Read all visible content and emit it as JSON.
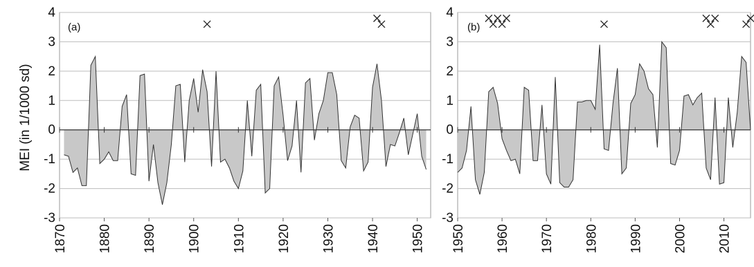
{
  "figure": {
    "ylabel": "MEI (in 1/1000 sd)"
  },
  "chart_data": [
    {
      "type": "area",
      "panel_label": "(a)",
      "ylabel": "MEI (in 1/1000 sd)",
      "xlabel": "",
      "xlim": [
        1870,
        1953
      ],
      "ylim": [
        -3,
        4
      ],
      "x_ticks": [
        1870,
        1880,
        1890,
        1900,
        1910,
        1920,
        1930,
        1940,
        1950
      ],
      "y_ticks": [
        -3,
        -2,
        -1,
        0,
        1,
        2,
        3,
        4
      ],
      "grid": true,
      "fill_color": "#c8c8c8",
      "line_color": "#333333",
      "series": [
        {
          "x": [
            1871,
            1872,
            1873,
            1874,
            1875,
            1876,
            1877,
            1878,
            1879,
            1880,
            1881,
            1882,
            1883,
            1884,
            1885,
            1886,
            1887,
            1888,
            1889,
            1890,
            1891,
            1892,
            1893,
            1894,
            1895,
            1896,
            1897,
            1898,
            1899,
            1900,
            1901,
            1902,
            1903,
            1904,
            1905,
            1906,
            1907,
            1908,
            1909,
            1910,
            1911,
            1912,
            1913,
            1914,
            1915,
            1916,
            1917,
            1918,
            1919,
            1920,
            1921,
            1922,
            1923,
            1924,
            1925,
            1926,
            1927,
            1928,
            1929,
            1930,
            1931,
            1932,
            1933,
            1934,
            1935,
            1936,
            1937,
            1938,
            1939,
            1940,
            1941,
            1942,
            1943,
            1944,
            1945,
            1946,
            1947,
            1948,
            1949,
            1950,
            1951,
            1952
          ],
          "values": [
            -0.85,
            -0.9,
            -1.45,
            -1.3,
            -1.9,
            -1.9,
            2.2,
            2.5,
            -1.15,
            -1.0,
            -0.75,
            -1.05,
            -1.05,
            0.8,
            1.2,
            -1.5,
            -1.55,
            1.85,
            1.9,
            -1.75,
            -0.5,
            -1.8,
            -2.55,
            -1.8,
            -0.5,
            1.5,
            1.55,
            -1.1,
            1.0,
            1.75,
            0.6,
            2.05,
            1.3,
            -1.25,
            2.0,
            -1.1,
            -1.0,
            -1.3,
            -1.75,
            -2.0,
            -1.4,
            1.0,
            -0.9,
            1.35,
            1.55,
            -2.15,
            -2.0,
            1.5,
            1.8,
            0.5,
            -1.05,
            -0.55,
            1.0,
            -1.45,
            1.6,
            1.75,
            -0.35,
            0.55,
            1.0,
            1.95,
            1.95,
            1.2,
            -1.05,
            -1.3,
            0.1,
            0.5,
            0.4,
            -1.4,
            -1.1,
            1.45,
            2.25,
            1.0,
            -1.25,
            -0.5,
            -0.55,
            -0.1,
            0.4,
            -0.85,
            -0.15,
            0.55,
            -0.9,
            -1.35
          ]
        }
      ],
      "markers": [
        {
          "x": 1903,
          "y": 3.6
        },
        {
          "x": 1941,
          "y": 3.8
        },
        {
          "x": 1942,
          "y": 3.6
        }
      ]
    },
    {
      "type": "area",
      "panel_label": "(b)",
      "ylabel": "",
      "xlabel": "",
      "xlim": [
        1950,
        2016
      ],
      "ylim": [
        -3,
        4
      ],
      "x_ticks": [
        1950,
        1960,
        1970,
        1980,
        1990,
        2000,
        2010
      ],
      "y_ticks": [
        -3,
        -2,
        -1,
        0,
        1,
        2,
        3,
        4
      ],
      "grid": true,
      "fill_color": "#c8c8c8",
      "line_color": "#333333",
      "series": [
        {
          "x": [
            1950,
            1951,
            1952,
            1953,
            1954,
            1955,
            1956,
            1957,
            1958,
            1959,
            1960,
            1961,
            1962,
            1963,
            1964,
            1965,
            1966,
            1967,
            1968,
            1969,
            1970,
            1971,
            1972,
            1973,
            1974,
            1975,
            1976,
            1977,
            1978,
            1979,
            1980,
            1981,
            1982,
            1983,
            1984,
            1985,
            1986,
            1987,
            1988,
            1989,
            1990,
            1991,
            1992,
            1993,
            1994,
            1995,
            1996,
            1997,
            1998,
            1999,
            2000,
            2001,
            2002,
            2003,
            2004,
            2005,
            2006,
            2007,
            2008,
            2009,
            2010,
            2011,
            2012,
            2013,
            2014,
            2015,
            2016
          ],
          "values": [
            -1.45,
            -1.3,
            -0.7,
            0.8,
            -1.7,
            -2.2,
            -1.45,
            1.3,
            1.45,
            0.9,
            -0.3,
            -0.7,
            -1.05,
            -1.0,
            -1.5,
            1.45,
            1.35,
            -1.05,
            -1.05,
            0.85,
            -1.5,
            -1.85,
            1.8,
            -1.8,
            -1.95,
            -1.95,
            -1.7,
            0.95,
            0.95,
            1.0,
            1.0,
            0.7,
            2.9,
            -0.65,
            -0.7,
            0.9,
            2.1,
            -1.5,
            -1.3,
            0.9,
            1.2,
            2.25,
            2.0,
            1.4,
            1.2,
            -0.6,
            3.0,
            2.8,
            -1.15,
            -1.2,
            -0.7,
            1.15,
            1.2,
            0.85,
            1.1,
            1.25,
            -1.3,
            -1.7,
            1.1,
            -1.85,
            -1.8,
            1.1,
            -0.6,
            0.6,
            2.5,
            2.3,
            0.0
          ]
        }
      ],
      "markers": [
        {
          "x": 1957,
          "y": 3.8
        },
        {
          "x": 1958,
          "y": 3.6
        },
        {
          "x": 1959,
          "y": 3.8
        },
        {
          "x": 1960,
          "y": 3.6
        },
        {
          "x": 1961,
          "y": 3.8
        },
        {
          "x": 1983,
          "y": 3.6
        },
        {
          "x": 2006,
          "y": 3.8
        },
        {
          "x": 2007,
          "y": 3.6
        },
        {
          "x": 2008,
          "y": 3.8
        },
        {
          "x": 2015,
          "y": 3.6
        },
        {
          "x": 2016,
          "y": 3.8
        }
      ]
    }
  ]
}
